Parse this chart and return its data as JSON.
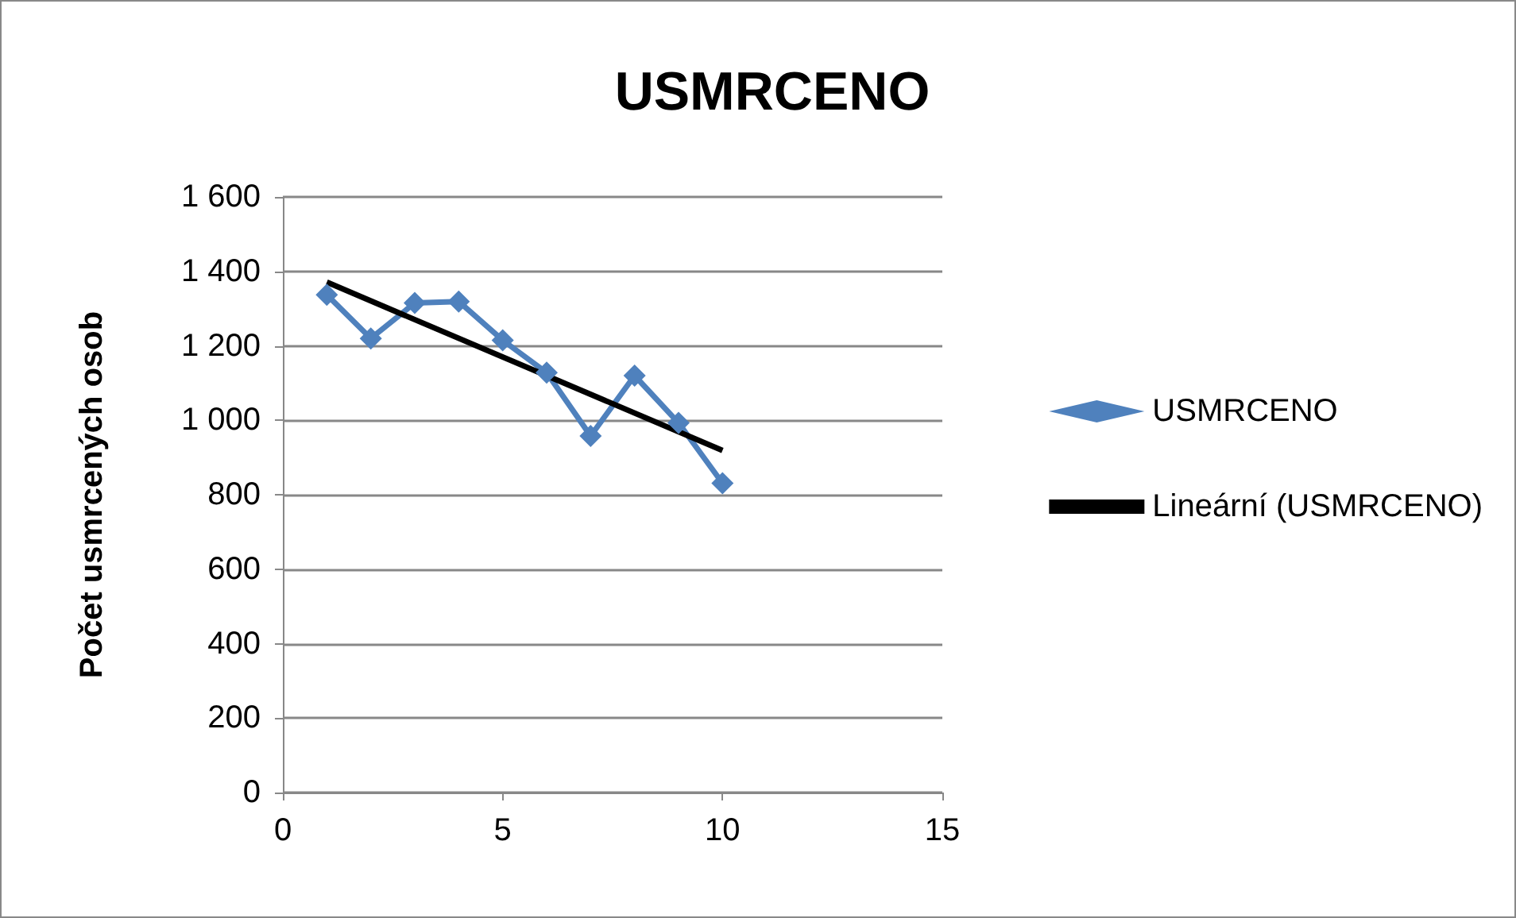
{
  "chart_data": {
    "type": "line",
    "title": "USMRCENO",
    "ylabel": "Počet usmrcených osob",
    "x": [
      1,
      2,
      3,
      4,
      5,
      6,
      7,
      8,
      9,
      10
    ],
    "series": [
      {
        "name": "USMRCENO",
        "color": "#4f81bd",
        "marker": "diamond",
        "values": [
          1337,
          1220,
          1315,
          1319,
          1215,
          1128,
          958,
          1120,
          993,
          831
        ]
      },
      {
        "name": "Lineární (USMRCENO)",
        "color": "#000000",
        "marker": "none",
        "x": [
          1,
          10
        ],
        "values": [
          1371,
          919
        ]
      }
    ],
    "xlim": [
      0,
      15
    ],
    "xticks": [
      0,
      5,
      10,
      15
    ],
    "ylim": [
      0,
      1600
    ],
    "yticks": [
      {
        "value": 0,
        "label": "0"
      },
      {
        "value": 200,
        "label": "200"
      },
      {
        "value": 400,
        "label": "400"
      },
      {
        "value": 600,
        "label": "600"
      },
      {
        "value": 800,
        "label": "800"
      },
      {
        "value": 1000,
        "label": "1 000"
      },
      {
        "value": 1200,
        "label": "1 200"
      },
      {
        "value": 1400,
        "label": "1 400"
      },
      {
        "value": 1600,
        "label": "1 600"
      }
    ],
    "grid": "y",
    "legend": "right"
  }
}
